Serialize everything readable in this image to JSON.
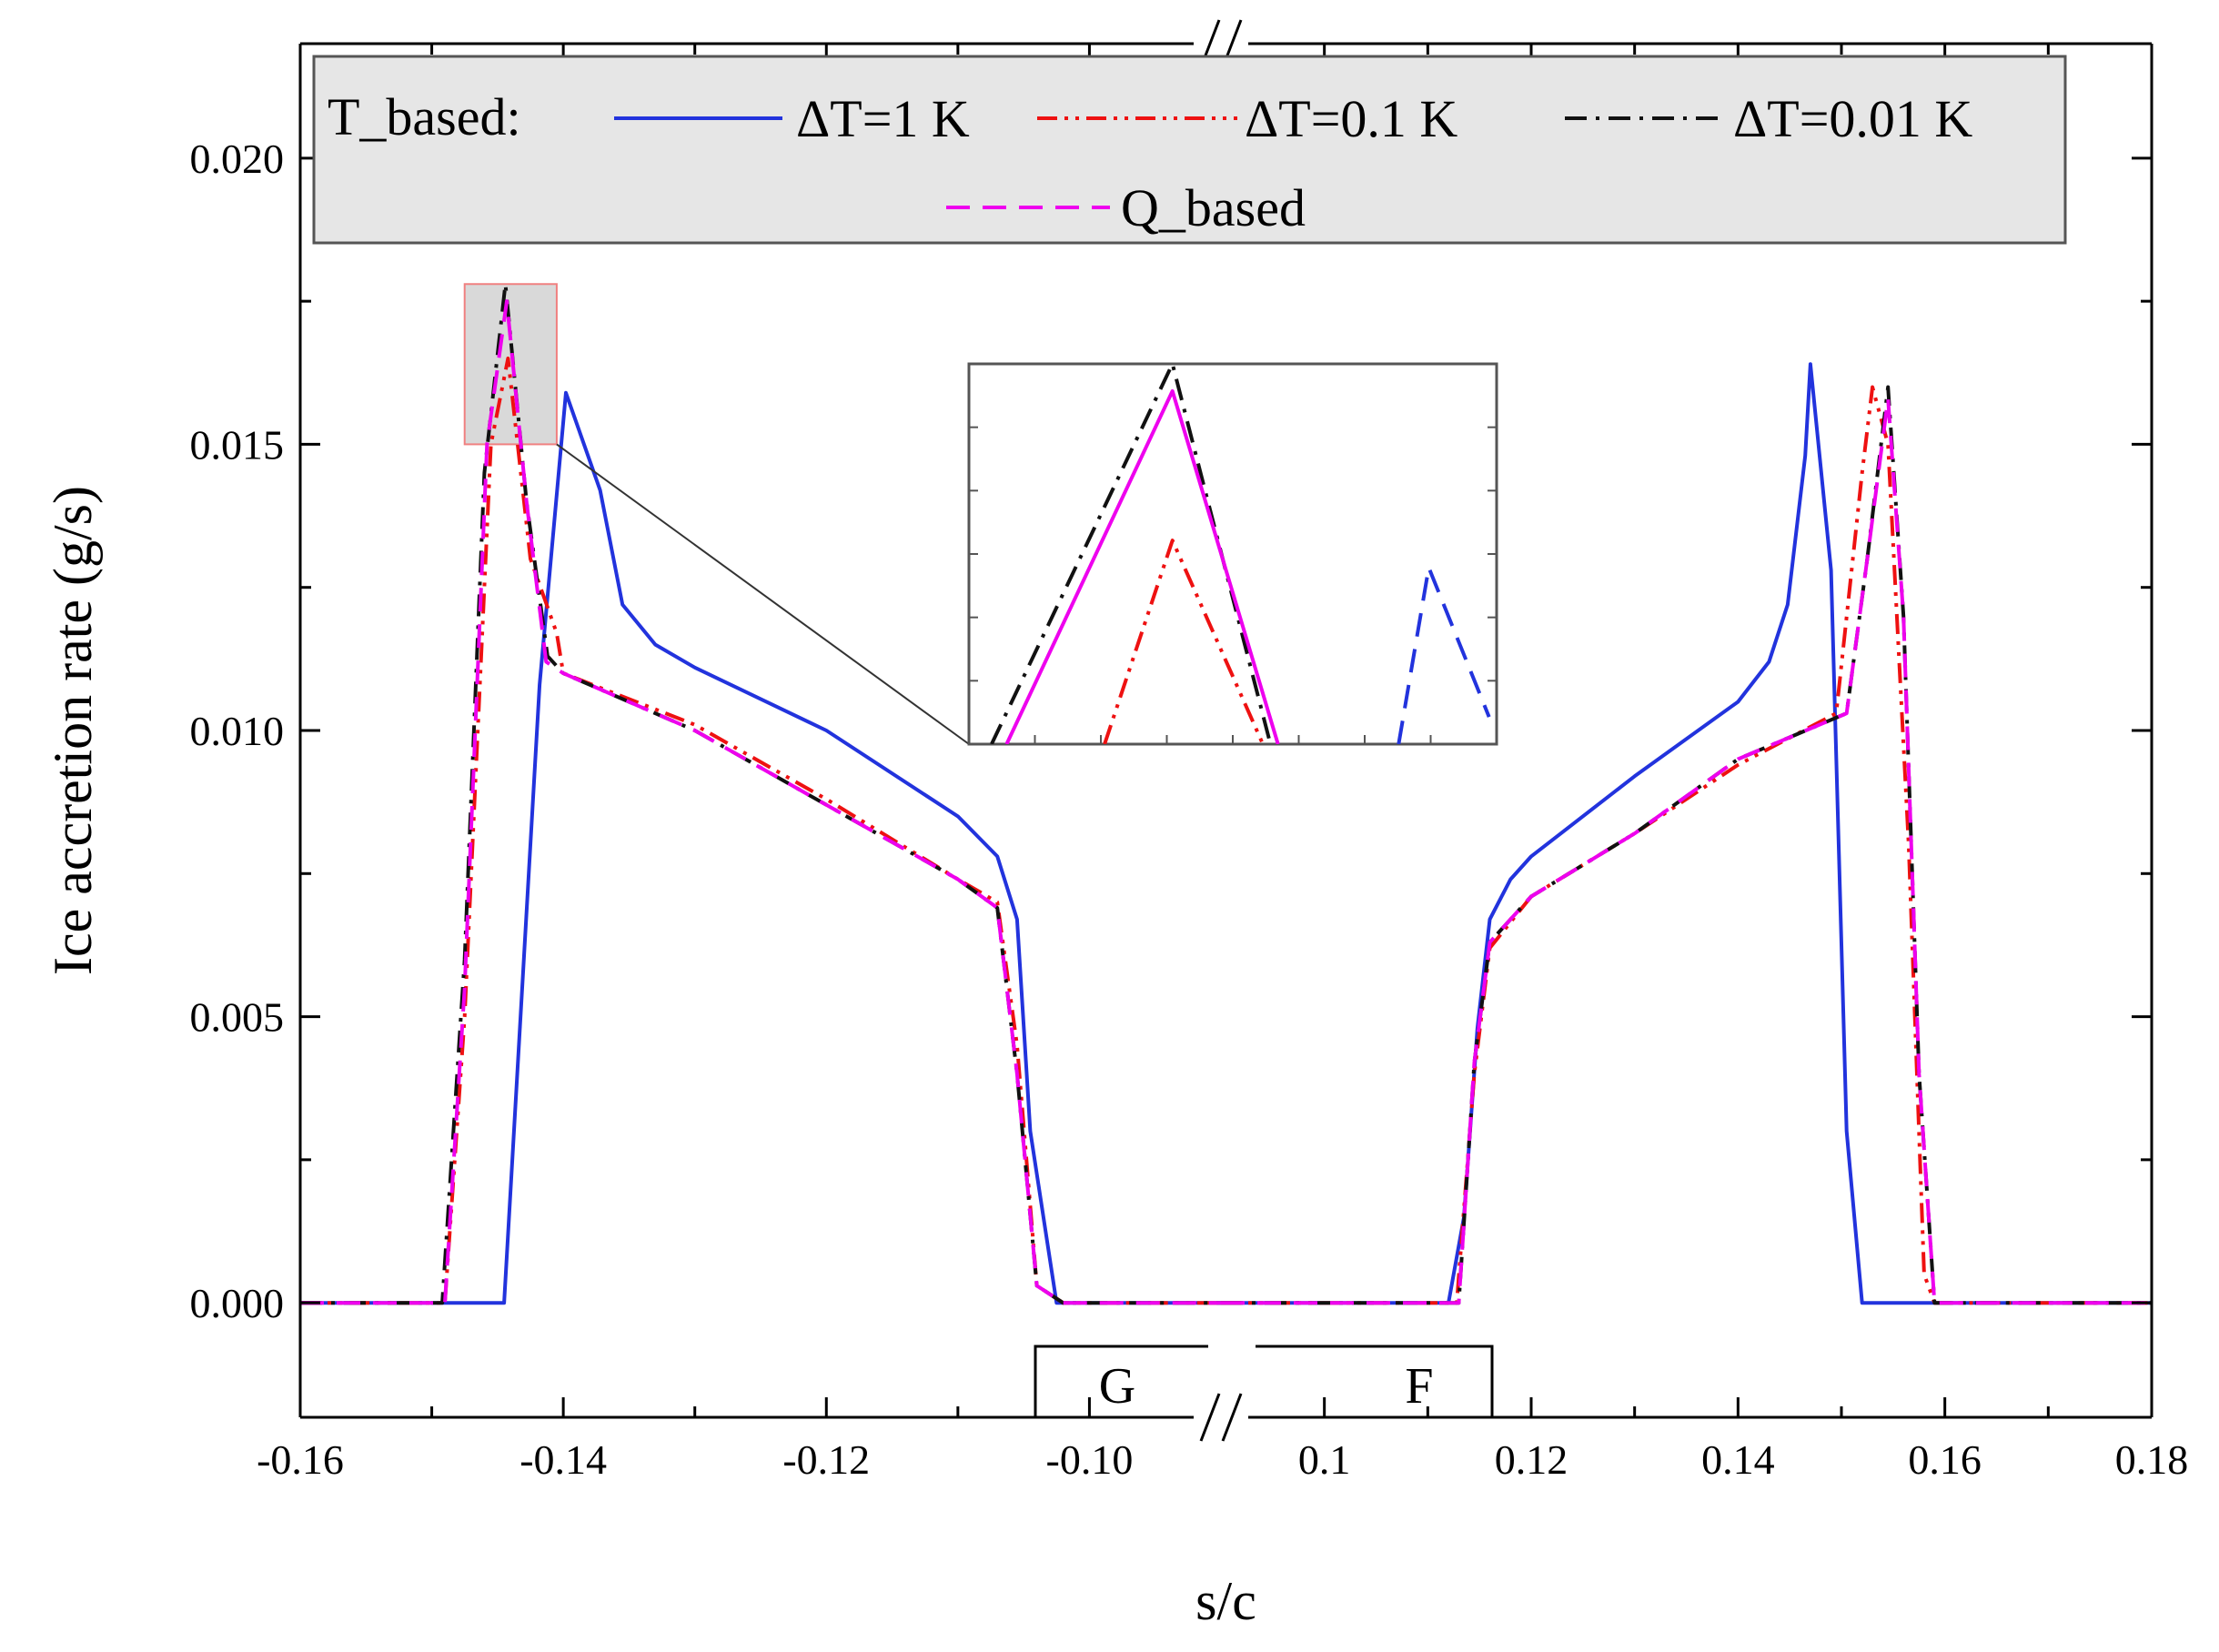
{
  "chart_data": {
    "type": "line",
    "title": "",
    "xlabel": "s/c",
    "ylabel": "Ice accretion rate (g/s)",
    "axis_break": "between -0.09 and 0.1 (drawn as //)",
    "panels": [
      {
        "name": "left",
        "xlim": [
          -0.16,
          -0.09
        ],
        "ticks": [
          -0.16,
          -0.14,
          -0.12,
          -0.1
        ],
        "tick_labels": [
          "-0.16",
          "-0.14",
          "-0.12",
          "-0.10"
        ]
      },
      {
        "name": "right",
        "xlim": [
          0.09,
          0.18
        ],
        "ticks": [
          0.1,
          0.12,
          0.14,
          0.16,
          0.18
        ],
        "tick_labels": [
          "0.1",
          "0.12",
          "0.14",
          "0.16",
          "0.18"
        ]
      }
    ],
    "ylim": [
      -0.002,
      0.022
    ],
    "y_ticks": [
      0.0,
      0.005,
      0.01,
      0.015,
      0.02
    ],
    "y_tick_labels": [
      "0.000",
      "0.005",
      "0.010",
      "0.015",
      "0.020"
    ],
    "legend": {
      "group_label": "T_based:",
      "position": "top",
      "entries": [
        "ΔT=1 K",
        "ΔT=0.1 K",
        "ΔT=0.01 K",
        "Q_based"
      ]
    },
    "region_labels": [
      "G",
      "F"
    ],
    "series": [
      {
        "name": "T_based ΔT=1 K",
        "color": "#2233dd",
        "style": "solid",
        "left": [
          [
            -0.16,
            0
          ],
          [
            -0.1445,
            0
          ],
          [
            -0.1418,
            0.0108
          ],
          [
            -0.1398,
            0.0159
          ],
          [
            -0.1372,
            0.0142
          ],
          [
            -0.1355,
            0.0122
          ],
          [
            -0.133,
            0.0115
          ],
          [
            -0.13,
            0.0111
          ],
          [
            -0.12,
            0.01
          ],
          [
            -0.11,
            0.0085
          ],
          [
            -0.107,
            0.0078
          ],
          [
            -0.1055,
            0.0067
          ],
          [
            -0.1045,
            0.003
          ],
          [
            -0.1025,
            0
          ],
          [
            -0.09,
            0
          ]
        ],
        "right": [
          [
            0.09,
            0
          ],
          [
            0.112,
            0
          ],
          [
            0.1135,
            0.0015
          ],
          [
            0.1148,
            0.0048
          ],
          [
            0.116,
            0.0067
          ],
          [
            0.118,
            0.0074
          ],
          [
            0.12,
            0.0078
          ],
          [
            0.13,
            0.0092
          ],
          [
            0.14,
            0.0105
          ],
          [
            0.143,
            0.0112
          ],
          [
            0.1448,
            0.0122
          ],
          [
            0.1465,
            0.0148
          ],
          [
            0.147,
            0.0164
          ],
          [
            0.149,
            0.0128
          ],
          [
            0.1505,
            0.003
          ],
          [
            0.152,
            0
          ],
          [
            0.18,
            0
          ]
        ]
      },
      {
        "name": "T_based ΔT=0.1 K",
        "color": "#ee1111",
        "style": "dash-dot-dot",
        "left": [
          [
            -0.16,
            0
          ],
          [
            -0.149,
            0
          ],
          [
            -0.1475,
            0.005
          ],
          [
            -0.1455,
            0.015
          ],
          [
            -0.1442,
            0.0165
          ],
          [
            -0.1425,
            0.013
          ],
          [
            -0.1405,
            0.0117
          ],
          [
            -0.14,
            0.011
          ],
          [
            -0.13,
            0.0101
          ],
          [
            -0.12,
            0.0088
          ],
          [
            -0.11,
            0.0074
          ],
          [
            -0.107,
            0.007
          ],
          [
            -0.1055,
            0.0045
          ],
          [
            -0.104,
            0.0003
          ],
          [
            -0.102,
            0
          ],
          [
            -0.09,
            0
          ]
        ],
        "right": [
          [
            0.09,
            0
          ],
          [
            0.1128,
            0
          ],
          [
            0.1145,
            0.004
          ],
          [
            0.116,
            0.0062
          ],
          [
            0.12,
            0.0071
          ],
          [
            0.13,
            0.0082
          ],
          [
            0.14,
            0.0094
          ],
          [
            0.1495,
            0.0103
          ],
          [
            0.152,
            0.0145
          ],
          [
            0.153,
            0.016
          ],
          [
            0.1545,
            0.015
          ],
          [
            0.1565,
            0.008
          ],
          [
            0.158,
            0.0005
          ],
          [
            0.159,
            0
          ],
          [
            0.18,
            0
          ]
        ]
      },
      {
        "name": "T_based ΔT=0.01 K",
        "color": "#111111",
        "style": "dash-dot",
        "left": [
          [
            -0.16,
            0
          ],
          [
            -0.1492,
            0
          ],
          [
            -0.1475,
            0.006
          ],
          [
            -0.146,
            0.0145
          ],
          [
            -0.1444,
            0.0178
          ],
          [
            -0.1428,
            0.014
          ],
          [
            -0.1412,
            0.0113
          ],
          [
            -0.14,
            0.011
          ],
          [
            -0.13,
            0.01
          ],
          [
            -0.12,
            0.0087
          ],
          [
            -0.11,
            0.0074
          ],
          [
            -0.107,
            0.0069
          ],
          [
            -0.1055,
            0.004
          ],
          [
            -0.104,
            0.0003
          ],
          [
            -0.102,
            0
          ],
          [
            -0.09,
            0
          ]
        ],
        "right": [
          [
            0.09,
            0
          ],
          [
            0.113,
            0
          ],
          [
            0.1145,
            0.0042
          ],
          [
            0.116,
            0.0063
          ],
          [
            0.12,
            0.0071
          ],
          [
            0.13,
            0.0082
          ],
          [
            0.14,
            0.0095
          ],
          [
            0.1505,
            0.0103
          ],
          [
            0.1525,
            0.013
          ],
          [
            0.1545,
            0.016
          ],
          [
            0.156,
            0.012
          ],
          [
            0.1575,
            0.004
          ],
          [
            0.159,
            0
          ],
          [
            0.18,
            0
          ]
        ]
      },
      {
        "name": "Q_based",
        "color": "#ee00ee",
        "style": "dashed",
        "left": [
          [
            -0.16,
            0
          ],
          [
            -0.149,
            0
          ],
          [
            -0.1475,
            0.0055
          ],
          [
            -0.1458,
            0.015
          ],
          [
            -0.1443,
            0.0175
          ],
          [
            -0.1428,
            0.014
          ],
          [
            -0.1413,
            0.0112
          ],
          [
            -0.14,
            0.011
          ],
          [
            -0.13,
            0.01
          ],
          [
            -0.12,
            0.0087
          ],
          [
            -0.11,
            0.0074
          ],
          [
            -0.107,
            0.0069
          ],
          [
            -0.1055,
            0.004
          ],
          [
            -0.104,
            0.0003
          ],
          [
            -0.102,
            0
          ],
          [
            -0.09,
            0
          ]
        ],
        "right": [
          [
            0.09,
            0
          ],
          [
            0.113,
            0
          ],
          [
            0.1145,
            0.0042
          ],
          [
            0.116,
            0.0063
          ],
          [
            0.12,
            0.0071
          ],
          [
            0.13,
            0.0082
          ],
          [
            0.14,
            0.0095
          ],
          [
            0.1505,
            0.0103
          ],
          [
            0.1525,
            0.013
          ],
          [
            0.1545,
            0.0158
          ],
          [
            0.156,
            0.012
          ],
          [
            0.1575,
            0.004
          ],
          [
            0.159,
            0
          ],
          [
            0.18,
            0
          ]
        ]
      }
    ],
    "zoom_box": {
      "xrange": [
        -0.1475,
        -0.1405
      ],
      "yrange": [
        0.015,
        0.0178
      ]
    },
    "inset": {
      "xrange": [
        -0.1475,
        -0.1405
      ],
      "yrange": [
        0.015,
        0.0178
      ],
      "series": [
        {
          "color": "#111111",
          "style": "dash-dot",
          "points": [
            [
              -0.1472,
              0.015
            ],
            [
              -0.1448,
              0.0178
            ],
            [
              -0.1435,
              0.015
            ]
          ]
        },
        {
          "color": "#ee00ee",
          "style": "solid",
          "points": [
            [
              -0.147,
              0.015
            ],
            [
              -0.1448,
              0.0176
            ],
            [
              -0.1434,
              0.015
            ]
          ]
        },
        {
          "color": "#ee1111",
          "style": "dash-dot-dot",
          "points": [
            [
              -0.1457,
              0.015
            ],
            [
              -0.1448,
              0.0165
            ],
            [
              -0.1436,
              0.015
            ]
          ]
        },
        {
          "color": "#2233dd",
          "style": "dashed",
          "points": [
            [
              -0.1418,
              0.015
            ],
            [
              -0.1414,
              0.0163
            ],
            [
              -0.1406,
              0.0152
            ]
          ]
        }
      ]
    }
  }
}
